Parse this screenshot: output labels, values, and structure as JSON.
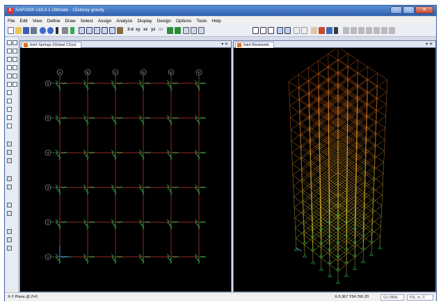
{
  "window": {
    "title": "SAP2000 v18.0.1 Ultimate - 15storey gravity",
    "app_icon": "X",
    "controls": {
      "minimize": "–",
      "maximize": "□",
      "close": "✕"
    }
  },
  "menu": [
    "File",
    "Edit",
    "View",
    "Define",
    "Draw",
    "Select",
    "Assign",
    "Analyze",
    "Display",
    "Design",
    "Options",
    "Tools",
    "Help"
  ],
  "toolbar": {
    "view_labels": [
      "3-d",
      "xy",
      "xz",
      "yz",
      "nv"
    ]
  },
  "left_view": {
    "tab_label": "Joint Springs (Global CSys)",
    "close_label": "▾ ✕",
    "grid_cols": [
      "A",
      "B",
      "C",
      "D",
      "E",
      "F"
    ],
    "grid_rows": [
      "6",
      "5",
      "4",
      "3",
      "2",
      "1"
    ]
  },
  "right_view": {
    "tab_label": "Joint Restraints",
    "close_label": "▾ ✕"
  },
  "status": {
    "plane": "X-Y Plane @ Z=0",
    "coords": "X-5.367  Y34.766  Z0",
    "coord_system": "GLOBAL",
    "units": "KN, m, C"
  },
  "colors": {
    "spring": "#22c24a",
    "frame_left": "#b31b1b",
    "grid_line": "#9a9a9a",
    "frame_3d_top": "#f26a1c",
    "frame_3d_bottom": "#e0e040",
    "background": "#000000"
  }
}
